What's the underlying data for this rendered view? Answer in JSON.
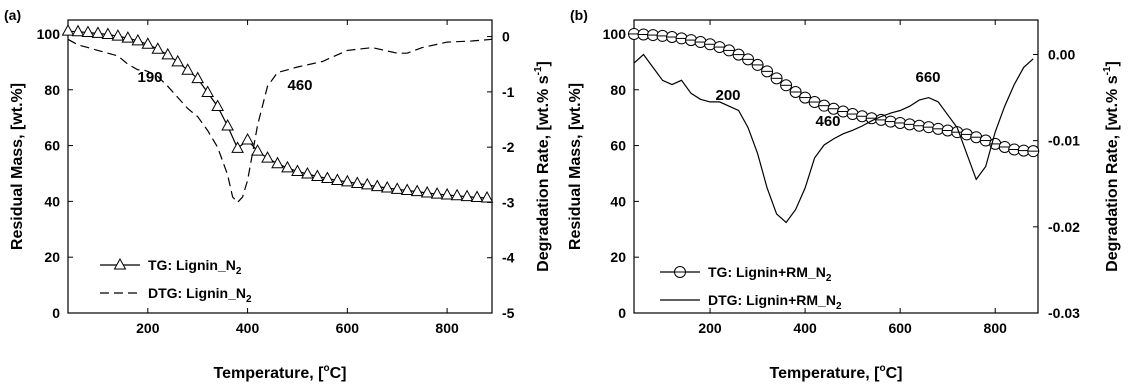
{
  "chart_data": [
    {
      "type": "line",
      "panel_label": "(a)",
      "xlabel": "Temperature, [",
      "xlabel_sup": "o",
      "xlabel_end": "C]",
      "ylabel_left": "Residual Mass, [wt.%]",
      "ylabel_right_main": "Degradation Rate, [wt.% s",
      "ylabel_right_sup": "-1",
      "ylabel_right_end": "]",
      "xlim": [
        40,
        890
      ],
      "ylim_left": [
        0,
        105
      ],
      "ylim_right": [
        -5,
        0.3
      ],
      "xticks": [
        200,
        400,
        600,
        800
      ],
      "yticks_left": [
        0,
        20,
        40,
        60,
        80,
        100
      ],
      "yticks_right": [
        0,
        -1,
        -2,
        -3,
        -4,
        -5
      ],
      "legend_position": "bottom-left",
      "series": [
        {
          "name": "TG: Lignin_N",
          "name_sub": "2",
          "axis": "left",
          "style": "solid-triangle",
          "x": [
            40,
            60,
            80,
            100,
            120,
            140,
            160,
            180,
            200,
            220,
            240,
            260,
            280,
            300,
            320,
            340,
            360,
            380,
            400,
            420,
            440,
            460,
            480,
            500,
            520,
            540,
            560,
            580,
            600,
            620,
            640,
            660,
            680,
            700,
            720,
            740,
            760,
            780,
            800,
            820,
            840,
            860,
            880
          ],
          "y": [
            101,
            100.8,
            100.5,
            100.2,
            99.8,
            99.2,
            98.5,
            97.5,
            96.3,
            94.5,
            92.5,
            90,
            87,
            84,
            79,
            74,
            67,
            59,
            62,
            58,
            55.5,
            53.5,
            52,
            50.7,
            49.8,
            48.9,
            48.2,
            47.5,
            47,
            46.4,
            45.9,
            45.3,
            44.8,
            44.3,
            43.9,
            43.5,
            43,
            42.6,
            42.3,
            42,
            41.7,
            41.4,
            41.2
          ]
        },
        {
          "name": "DTG: Lignin_N",
          "name_sub": "2",
          "axis": "right",
          "style": "dashed",
          "x": [
            40,
            60,
            80,
            100,
            120,
            140,
            160,
            180,
            190,
            200,
            220,
            240,
            260,
            280,
            300,
            320,
            340,
            360,
            370,
            380,
            390,
            400,
            420,
            440,
            460,
            480,
            500,
            550,
            600,
            650,
            700,
            720,
            750,
            800,
            850,
            890
          ],
          "y": [
            -0.05,
            -0.15,
            -0.2,
            -0.25,
            -0.3,
            -0.35,
            -0.5,
            -0.6,
            -0.6,
            -0.63,
            -0.72,
            -0.9,
            -1.1,
            -1.3,
            -1.45,
            -1.7,
            -2.0,
            -2.5,
            -2.9,
            -3.0,
            -2.9,
            -2.6,
            -1.6,
            -0.9,
            -0.65,
            -0.6,
            -0.55,
            -0.45,
            -0.25,
            -0.2,
            -0.3,
            -0.3,
            -0.2,
            -0.1,
            -0.08,
            -0.05
          ]
        }
      ],
      "annotations": [
        "190",
        "460"
      ]
    },
    {
      "type": "line",
      "panel_label": "(b)",
      "xlabel": "Temperature, [",
      "xlabel_sup": "o",
      "xlabel_end": "C]",
      "ylabel_left": "Residual Mass, [wt.%]",
      "ylabel_right_main": "Degradation Rate, [wt.% s",
      "ylabel_right_sup": "-1",
      "ylabel_right_end": "]",
      "xlim": [
        40,
        890
      ],
      "ylim_left": [
        0,
        105
      ],
      "ylim_right": [
        -0.03,
        0.004
      ],
      "xticks": [
        200,
        400,
        600,
        800
      ],
      "yticks_left": [
        0,
        20,
        40,
        60,
        80,
        100
      ],
      "yticks_right": [
        "0.00",
        "-0.01",
        "-0.02",
        "-0.03"
      ],
      "yticks_right_values": [
        0,
        -0.01,
        -0.02,
        -0.03
      ],
      "legend_position": "bottom-left",
      "series": [
        {
          "name": "TG: Lignin+RM_N",
          "name_sub": "2",
          "axis": "left",
          "style": "solid-circle",
          "x": [
            40,
            60,
            80,
            100,
            120,
            140,
            160,
            180,
            200,
            220,
            240,
            260,
            280,
            300,
            320,
            340,
            360,
            380,
            400,
            420,
            440,
            460,
            480,
            500,
            520,
            540,
            560,
            580,
            600,
            620,
            640,
            660,
            680,
            700,
            720,
            740,
            760,
            780,
            800,
            820,
            840,
            860,
            880
          ],
          "y": [
            100,
            99.8,
            99.6,
            99.3,
            98.9,
            98.4,
            97.8,
            97.1,
            96.3,
            95.3,
            94.1,
            92.6,
            90.9,
            88.9,
            86.6,
            84.1,
            81.6,
            79.2,
            77.2,
            75.6,
            74.3,
            73.2,
            72.2,
            71.3,
            70.5,
            69.8,
            69.2,
            68.6,
            68.1,
            67.6,
            67.1,
            66.6,
            66,
            65.4,
            64.8,
            64,
            63,
            61.8,
            60.6,
            59.5,
            58.6,
            58.2,
            58
          ]
        },
        {
          "name": "DTG: Lignin+RM_N",
          "name_sub": "2",
          "axis": "right",
          "style": "solid",
          "x": [
            40,
            60,
            80,
            100,
            120,
            140,
            160,
            180,
            200,
            220,
            240,
            260,
            280,
            300,
            320,
            340,
            360,
            380,
            400,
            420,
            440,
            460,
            480,
            500,
            520,
            540,
            560,
            580,
            600,
            620,
            640,
            660,
            680,
            700,
            720,
            740,
            760,
            780,
            800,
            820,
            840,
            860,
            880
          ],
          "y": [
            -0.001,
            0.0,
            -0.0015,
            -0.003,
            -0.0035,
            -0.003,
            -0.0045,
            -0.0052,
            -0.0055,
            -0.0055,
            -0.006,
            -0.0065,
            -0.0085,
            -0.0115,
            -0.0155,
            -0.0185,
            -0.0195,
            -0.018,
            -0.0155,
            -0.012,
            -0.0105,
            -0.0098,
            -0.0092,
            -0.0088,
            -0.0083,
            -0.0077,
            -0.0072,
            -0.0068,
            -0.0065,
            -0.006,
            -0.0053,
            -0.005,
            -0.0055,
            -0.007,
            -0.0085,
            -0.0115,
            -0.0145,
            -0.013,
            -0.009,
            -0.006,
            -0.0035,
            -0.0015,
            -0.0005
          ]
        }
      ],
      "annotations": [
        "200",
        "460",
        "660"
      ]
    }
  ]
}
